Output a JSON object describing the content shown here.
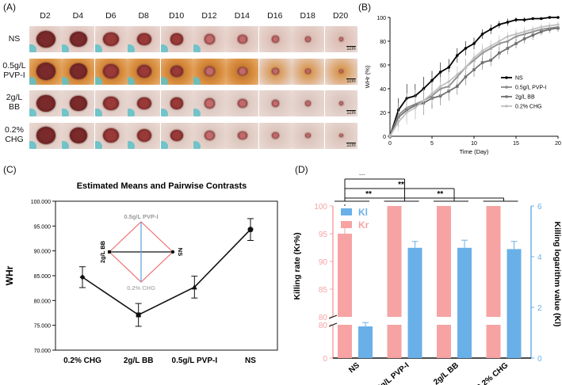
{
  "panels": {
    "A": {
      "label": "(A)",
      "days": [
        "D2",
        "D4",
        "D6",
        "D8",
        "D10",
        "D12",
        "D14",
        "D16",
        "D18",
        "D20"
      ],
      "rows": [
        "NS",
        "0.5g/L PVP-I",
        "2g/L BB",
        "0.2% CHG"
      ],
      "scale": "1cm"
    },
    "B": {
      "label": "(B)",
      "chart_data": {
        "type": "line",
        "xlabel": "Time (Day)",
        "ylabel": "WHr (%)",
        "xlim": [
          0,
          20
        ],
        "ylim": [
          0,
          100
        ],
        "xticks": [
          "0",
          "5",
          "10",
          "15",
          "20"
        ],
        "yticks": [
          "0",
          "20",
          "40",
          "60",
          "80",
          "100"
        ],
        "x": [
          0,
          1,
          2,
          3,
          4,
          5,
          6,
          7,
          8,
          9,
          10,
          11,
          12,
          13,
          14,
          15,
          16,
          17,
          18,
          19,
          20
        ],
        "series": [
          {
            "name": "NS",
            "color": "#000000",
            "marker": "circle",
            "values": [
              0,
              22,
              32,
              34,
              40,
              47,
              54,
              58,
              68,
              74,
              78,
              86,
              90,
              94,
              96,
              98,
              98,
              99,
              99,
              100,
              100
            ],
            "err": [
              0,
              10,
              12,
              10,
              10,
              8,
              8,
              7,
              6,
              6,
              5,
              4,
              4,
              3,
              3,
              2,
              2,
              1,
              1,
              1,
              1
            ]
          },
          {
            "name": "0.5g/L PVP-I",
            "color": "#8c8c8c",
            "marker": "triangle",
            "values": [
              0,
              18,
              24,
              27,
              30,
              34,
              40,
              42,
              50,
              58,
              64,
              70,
              74,
              78,
              80,
              84,
              86,
              88,
              90,
              91,
              92
            ],
            "err": [
              0,
              10,
              12,
              12,
              10,
              10,
              9,
              8,
              8,
              7,
              6,
              6,
              5,
              5,
              4,
              4,
              4,
              3,
              3,
              3,
              3
            ]
          },
          {
            "name": "2g/L BB",
            "color": "#707070",
            "marker": "square",
            "values": [
              0,
              16,
              22,
              26,
              28,
              32,
              34,
              38,
              42,
              50,
              56,
              62,
              64,
              70,
              74,
              78,
              82,
              85,
              88,
              90,
              91
            ],
            "err": [
              0,
              8,
              10,
              10,
              10,
              9,
              8,
              8,
              7,
              7,
              6,
              6,
              5,
              5,
              5,
              4,
              4,
              4,
              3,
              3,
              3
            ]
          },
          {
            "name": "0.2% CHG",
            "color": "#c0c0c0",
            "marker": "diamond",
            "values": [
              0,
              12,
              20,
              24,
              30,
              36,
              42,
              46,
              52,
              58,
              66,
              72,
              76,
              80,
              84,
              86,
              88,
              90,
              92,
              93,
              94
            ],
            "err": [
              0,
              8,
              10,
              10,
              10,
              9,
              8,
              8,
              7,
              7,
              6,
              6,
              5,
              5,
              4,
              4,
              4,
              3,
              3,
              3,
              3
            ]
          }
        ]
      }
    },
    "C": {
      "label": "(C)",
      "chart_data": {
        "type": "line",
        "title": "Estimated Means and Pairwise Contrasts",
        "ylabel": "WHr",
        "ylim": [
          70,
          100
        ],
        "yticks": [
          "70.000",
          "75.000",
          "80.000",
          "85.000",
          "90.000",
          "95.000",
          "100.000"
        ],
        "categories": [
          "0.2% CHG",
          "2g/L BB",
          "0.5g/L PVP-I",
          "NS"
        ],
        "values": [
          84.7,
          77.1,
          82.7,
          94.3
        ],
        "err": [
          2.1,
          2.3,
          2.2,
          2.2
        ],
        "inset_labels": {
          "top": "0.5g/L PVP-I",
          "bottom": "0.2% CHG",
          "left": "2g/L BB",
          "right": "NS"
        }
      }
    },
    "D": {
      "label": "(D)",
      "chart_data": {
        "type": "bar",
        "categories": [
          "NS",
          "0.5g/L PVP-I",
          "2g/L BB",
          "0.2% CHG"
        ],
        "series": [
          {
            "name": "Kl",
            "color": "#6ab0e8",
            "axis": "right",
            "values": [
              1.25,
              4.35,
              4.35,
              4.3
            ],
            "err": [
              0.15,
              0.25,
              0.3,
              0.3
            ]
          },
          {
            "name": "Kr",
            "color": "#f7a3a3",
            "axis": "left",
            "values": [
              95.0,
              100,
              100,
              100
            ],
            "err": [
              1.9,
              0,
              0,
              0
            ]
          }
        ],
        "left_ylabel": "Killing rate (Kr%)",
        "right_ylabel": "Killing logarithm value (Kl)",
        "left_ticks_upper": [
          "80",
          "85",
          "90",
          "95",
          "100"
        ],
        "left_ticks_lower": [
          "0",
          "80"
        ],
        "right_ticks": [
          "0",
          "2",
          "4",
          "6"
        ],
        "right_ylim": [
          0,
          6
        ],
        "significance": [
          "**",
          "**",
          "**",
          "**"
        ]
      }
    }
  }
}
